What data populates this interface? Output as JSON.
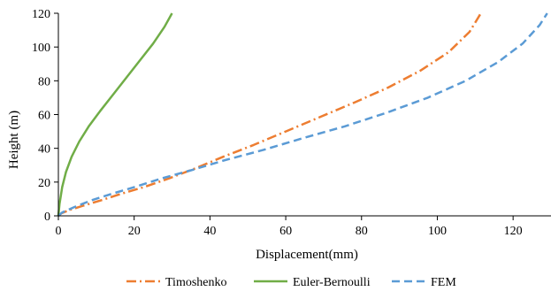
{
  "chart_data": {
    "type": "line",
    "xlabel": "Displacement(mm)",
    "ylabel": "Height (m)",
    "xlim": [
      0,
      130
    ],
    "ylim": [
      0,
      120
    ],
    "xticks": [
      0,
      20,
      40,
      60,
      80,
      100,
      120
    ],
    "yticks": [
      0,
      20,
      40,
      60,
      80,
      100,
      120
    ],
    "grid": false,
    "legend_position": "bottom",
    "series": [
      {
        "name": "Timoshenko",
        "color": "#ED7D31",
        "dash": "long-dash-dot",
        "x": [
          0,
          0.8,
          3,
          6.5,
          11,
          16.5,
          22.5,
          29,
          36,
          43.5,
          51.5,
          60,
          69,
          78,
          87,
          95.5,
          103,
          108.5,
          111.5
        ],
        "y": [
          0,
          1.5,
          3.5,
          6,
          9,
          13,
          17,
          22,
          28,
          35,
          42,
          50,
          58.5,
          67,
          76,
          86,
          97,
          109,
          120
        ]
      },
      {
        "name": "Euler-Bernoulli",
        "color": "#70AD47",
        "dash": "solid",
        "x": [
          0,
          0.3,
          1,
          2,
          3.5,
          5.5,
          8,
          11,
          14.5,
          18,
          21.5,
          25,
          28,
          30
        ],
        "y": [
          0,
          7,
          17,
          26,
          35,
          44,
          53,
          62,
          72,
          82,
          92,
          102,
          112,
          120
        ]
      },
      {
        "name": "FEM",
        "color": "#5B9BD5",
        "dash": "dashed",
        "x": [
          0,
          1,
          4,
          8.5,
          14,
          20,
          27,
          35,
          44,
          54,
          64.5,
          75.5,
          86.5,
          97.5,
          107.5,
          116,
          122.5,
          127,
          129
        ],
        "y": [
          0,
          2,
          5,
          9,
          13,
          17,
          22,
          27,
          33,
          39,
          46,
          53,
          61,
          70,
          80,
          91,
          102,
          113,
          120
        ]
      }
    ]
  }
}
